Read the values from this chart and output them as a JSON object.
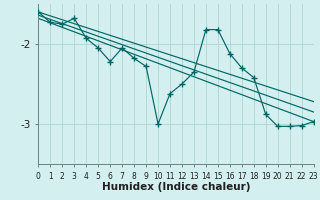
{
  "xlabel": "Humidex (Indice chaleur)",
  "background_color": "#d4efef",
  "grid_color": "#aed4d4",
  "line_color": "#006666",
  "xlim": [
    0,
    23
  ],
  "ylim": [
    -3.5,
    -1.5
  ],
  "yticks": [
    -3,
    -2
  ],
  "xticks": [
    0,
    1,
    2,
    3,
    4,
    5,
    6,
    7,
    8,
    9,
    10,
    11,
    12,
    13,
    14,
    15,
    16,
    17,
    18,
    19,
    20,
    21,
    22,
    23
  ],
  "main_x": [
    0,
    1,
    2,
    3,
    4,
    5,
    6,
    7,
    8,
    9,
    10,
    11,
    12,
    13,
    14,
    15,
    16,
    17,
    18,
    19,
    20,
    21,
    22,
    23
  ],
  "main_y": [
    -1.6,
    -1.73,
    -1.75,
    -1.68,
    -1.93,
    -2.05,
    -2.22,
    -2.05,
    -2.18,
    -2.28,
    -3.0,
    -2.62,
    -2.5,
    -2.35,
    -1.82,
    -1.82,
    -2.12,
    -2.3,
    -2.42,
    -2.88,
    -3.03,
    -3.03,
    -3.02,
    -2.97
  ],
  "line1_x": [
    0,
    23
  ],
  "line1_y": [
    -1.6,
    -2.72
  ],
  "line2_x": [
    0,
    23
  ],
  "line2_y": [
    -1.68,
    -2.97
  ],
  "line3_x": [
    0,
    23
  ],
  "line3_y": [
    -1.64,
    -2.85
  ]
}
